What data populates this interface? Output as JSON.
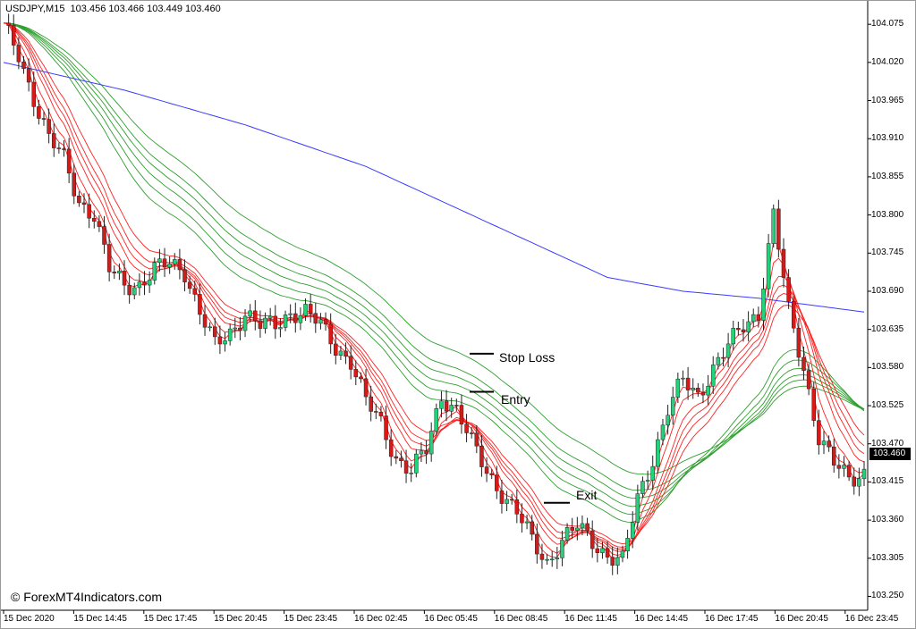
{
  "header": {
    "symbol_info": "USDJPY,M15  103.456 103.466 103.449 103.460"
  },
  "watermark": "© ForexMT4Indicators.com",
  "annotations": {
    "stop_loss": "Stop Loss",
    "entry": "Entry",
    "exit": "Exit"
  },
  "last_price": "103.460",
  "colors": {
    "bull": "#22d37a",
    "bear": "#d61a1a",
    "sma": "#3a3aff",
    "fast_ribbon": "#ff2020",
    "slow_ribbon": "#2e9e2e",
    "axis": "#000000"
  },
  "chart_data": {
    "type": "candlestick",
    "title": "USDJPY,M15",
    "ylim": [
      103.23,
      104.11
    ],
    "y_ticks": [
      "104.075",
      "104.020",
      "103.965",
      "103.910",
      "103.855",
      "103.800",
      "103.745",
      "103.690",
      "103.635",
      "103.580",
      "103.525",
      "103.470",
      "103.415",
      "103.360",
      "103.305",
      "103.250"
    ],
    "x_ticks": [
      "15 Dec 2020",
      "15 Dec 14:45",
      "15 Dec 17:45",
      "15 Dec 20:45",
      "15 Dec 23:45",
      "16 Dec 02:45",
      "16 Dec 05:45",
      "16 Dec 08:45",
      "16 Dec 11:45",
      "16 Dec 14:45",
      "16 Dec 17:45",
      "16 Dec 20:45",
      "16 Dec 23:45"
    ],
    "price_path": [
      [
        0,
        104.07
      ],
      [
        3,
        104.03
      ],
      [
        6,
        103.97
      ],
      [
        9,
        103.91
      ],
      [
        12,
        103.88
      ],
      [
        15,
        103.82
      ],
      [
        18,
        103.8
      ],
      [
        21,
        103.72
      ],
      [
        24,
        103.7
      ],
      [
        27,
        103.7
      ],
      [
        30,
        103.72
      ],
      [
        33,
        103.73
      ],
      [
        36,
        103.72
      ],
      [
        39,
        103.66
      ],
      [
        42,
        103.61
      ],
      [
        45,
        103.63
      ],
      [
        48,
        103.66
      ],
      [
        51,
        103.64
      ],
      [
        54,
        103.64
      ],
      [
        57,
        103.66
      ],
      [
        60,
        103.66
      ],
      [
        63,
        103.64
      ],
      [
        66,
        103.61
      ],
      [
        69,
        103.59
      ],
      [
        72,
        103.53
      ],
      [
        75,
        103.5
      ],
      [
        78,
        103.45
      ],
      [
        81,
        103.43
      ],
      [
        84,
        103.46
      ],
      [
        87,
        103.54
      ],
      [
        90,
        103.52
      ],
      [
        93,
        103.47
      ],
      [
        96,
        103.43
      ],
      [
        99,
        103.4
      ],
      [
        102,
        103.37
      ],
      [
        105,
        103.33
      ],
      [
        108,
        103.3
      ],
      [
        111,
        103.33
      ],
      [
        114,
        103.35
      ],
      [
        117,
        103.33
      ],
      [
        120,
        103.31
      ],
      [
        123,
        103.3
      ],
      [
        126,
        103.39
      ],
      [
        129,
        103.45
      ],
      [
        132,
        103.52
      ],
      [
        135,
        103.56
      ],
      [
        138,
        103.54
      ],
      [
        141,
        103.58
      ],
      [
        144,
        103.61
      ],
      [
        147,
        103.64
      ],
      [
        150,
        103.66
      ],
      [
        153,
        103.8
      ],
      [
        156,
        103.66
      ],
      [
        159,
        103.58
      ],
      [
        162,
        103.48
      ],
      [
        165,
        103.44
      ],
      [
        168,
        103.42
      ],
      [
        171,
        103.43
      ]
    ],
    "sma_path": [
      [
        0,
        104.02
      ],
      [
        24,
        103.98
      ],
      [
        48,
        103.93
      ],
      [
        72,
        103.87
      ],
      [
        96,
        103.79
      ],
      [
        120,
        103.71
      ],
      [
        135,
        103.69
      ],
      [
        150,
        103.68
      ],
      [
        171,
        103.66
      ]
    ],
    "annotation_prices": {
      "stop_loss": 103.6,
      "entry": 103.545,
      "exit": 103.385
    }
  }
}
